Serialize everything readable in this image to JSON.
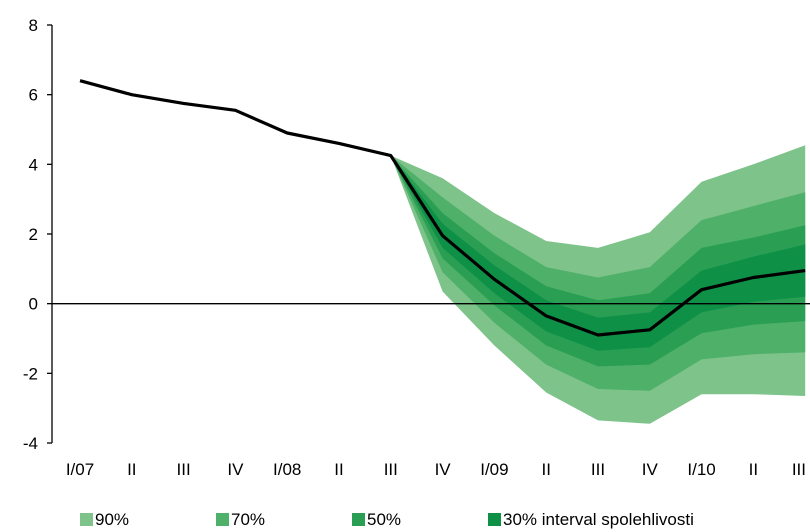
{
  "chart_data": {
    "type": "area",
    "title": "",
    "xlabel": "",
    "ylabel": "",
    "categories": [
      "I/07",
      "II",
      "III",
      "IV",
      "I/08",
      "II",
      "III",
      "IV",
      "I/09",
      "II",
      "III",
      "IV",
      "I/10",
      "II",
      "III"
    ],
    "ylim": [
      -4,
      8
    ],
    "yticks": [
      "8",
      "6",
      "4",
      "2",
      "0",
      "-2",
      "-4"
    ],
    "grid": false,
    "legend_position": "bottom",
    "zero_line": true,
    "central_line": {
      "name": "",
      "color": "#000000",
      "values": [
        6.4,
        6.0,
        5.75,
        5.55,
        4.9,
        4.6,
        4.25,
        1.95,
        0.7,
        -0.35,
        -0.9,
        -0.75,
        0.4,
        0.75,
        0.95
      ]
    },
    "bands": [
      {
        "name": "90%",
        "color": "#7dc38a",
        "lower": [
          null,
          null,
          null,
          null,
          null,
          null,
          4.25,
          0.35,
          -1.2,
          -2.55,
          -3.35,
          -3.45,
          -2.6,
          -2.6,
          -2.65
        ],
        "upper": [
          null,
          null,
          null,
          null,
          null,
          null,
          4.25,
          3.6,
          2.6,
          1.8,
          1.6,
          2.05,
          3.5,
          4.0,
          4.55
        ]
      },
      {
        "name": "70%",
        "color": "#4fb06a",
        "lower": [
          null,
          null,
          null,
          null,
          null,
          null,
          4.25,
          0.9,
          -0.55,
          -1.75,
          -2.45,
          -2.5,
          -1.6,
          -1.45,
          -1.4
        ],
        "upper": [
          null,
          null,
          null,
          null,
          null,
          null,
          4.25,
          3.05,
          1.95,
          1.05,
          0.75,
          1.05,
          2.4,
          2.8,
          3.2
        ]
      },
      {
        "name": "50%",
        "color": "#2a9f54",
        "lower": [
          null,
          null,
          null,
          null,
          null,
          null,
          4.25,
          1.3,
          -0.05,
          -1.2,
          -1.8,
          -1.75,
          -0.85,
          -0.6,
          -0.5
        ],
        "upper": [
          null,
          null,
          null,
          null,
          null,
          null,
          4.25,
          2.6,
          1.45,
          0.5,
          0.1,
          0.3,
          1.6,
          1.9,
          2.25
        ]
      },
      {
        "name": "30% interval spolehlivosti",
        "color": "#0e9147",
        "lower": [
          null,
          null,
          null,
          null,
          null,
          null,
          4.25,
          1.6,
          0.3,
          -0.8,
          -1.35,
          -1.25,
          -0.25,
          0.05,
          0.2
        ],
        "upper": [
          null,
          null,
          null,
          null,
          null,
          null,
          4.25,
          2.3,
          1.1,
          0.1,
          -0.4,
          -0.25,
          0.95,
          1.35,
          1.7
        ]
      }
    ]
  }
}
